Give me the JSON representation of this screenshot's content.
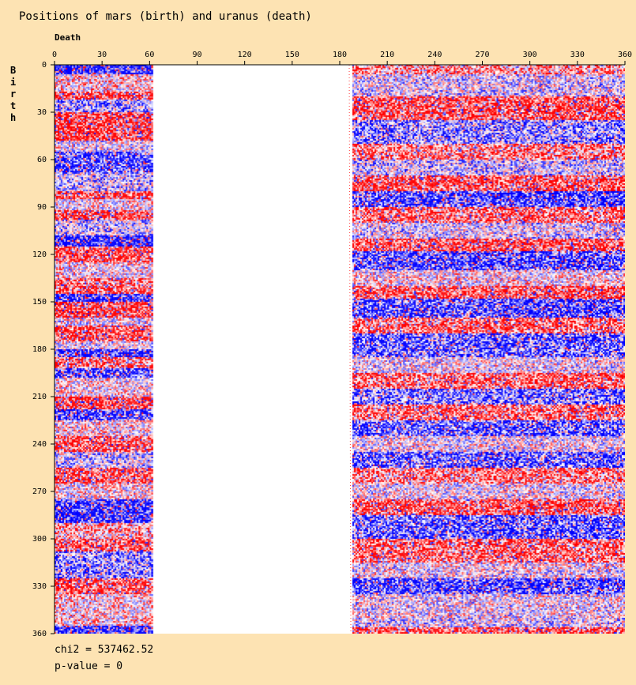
{
  "chart_data": {
    "type": "heatmap",
    "title": "Positions of mars (birth) and uranus (death)",
    "xlabel": "Death",
    "ylabel": "Birth",
    "xlim": [
      0,
      360
    ],
    "ylim": [
      0,
      360
    ],
    "xticks": [
      0,
      30,
      60,
      90,
      120,
      150,
      180,
      210,
      240,
      270,
      300,
      330,
      360
    ],
    "yticks": [
      0,
      30,
      60,
      90,
      120,
      150,
      180,
      210,
      240,
      270,
      300,
      330,
      360
    ],
    "colorscale": {
      "low": "#0000ff",
      "mid": "#ffffff",
      "high": "#ff0000"
    },
    "empty_x_range": [
      62,
      188
    ],
    "left_region": [
      0,
      62
    ],
    "right_region": [
      188,
      360
    ],
    "left_row_bands": [
      [
        0,
        6,
        -1
      ],
      [
        6,
        17,
        0.2
      ],
      [
        17,
        22,
        0.8
      ],
      [
        22,
        30,
        -0.4
      ],
      [
        30,
        48,
        0.9
      ],
      [
        48,
        55,
        0
      ],
      [
        55,
        68,
        -0.8
      ],
      [
        68,
        80,
        -0.2
      ],
      [
        80,
        85,
        0.8
      ],
      [
        85,
        92,
        0.1
      ],
      [
        92,
        98,
        0.8
      ],
      [
        98,
        108,
        -0.2
      ],
      [
        108,
        115,
        -1
      ],
      [
        115,
        125,
        0.8
      ],
      [
        125,
        135,
        0.1
      ],
      [
        135,
        145,
        0.7
      ],
      [
        145,
        150,
        -0.9
      ],
      [
        150,
        160,
        0.9
      ],
      [
        160,
        165,
        0
      ],
      [
        165,
        175,
        0.8
      ],
      [
        175,
        180,
        0
      ],
      [
        180,
        185,
        -0.9
      ],
      [
        185,
        192,
        0.6
      ],
      [
        192,
        198,
        -0.8
      ],
      [
        198,
        210,
        0.1
      ],
      [
        210,
        218,
        0.9
      ],
      [
        218,
        225,
        -0.8
      ],
      [
        225,
        235,
        0.1
      ],
      [
        235,
        245,
        0.8
      ],
      [
        245,
        255,
        -0.2
      ],
      [
        255,
        265,
        0.8
      ],
      [
        265,
        275,
        0.1
      ],
      [
        275,
        290,
        -0.9
      ],
      [
        290,
        300,
        0.4
      ],
      [
        300,
        308,
        0.8
      ],
      [
        308,
        325,
        -0.5
      ],
      [
        325,
        335,
        0.8
      ],
      [
        335,
        355,
        0.2
      ],
      [
        355,
        360,
        -1
      ]
    ],
    "right_row_bands": [
      [
        0,
        6,
        0.5
      ],
      [
        6,
        20,
        -0.1
      ],
      [
        20,
        35,
        0.8
      ],
      [
        35,
        50,
        -0.5
      ],
      [
        50,
        60,
        0.6
      ],
      [
        60,
        70,
        -0.2
      ],
      [
        70,
        80,
        0.8
      ],
      [
        80,
        90,
        -0.8
      ],
      [
        90,
        100,
        0.7
      ],
      [
        100,
        110,
        -0.1
      ],
      [
        110,
        118,
        0.8
      ],
      [
        118,
        130,
        -0.8
      ],
      [
        130,
        140,
        0.1
      ],
      [
        140,
        148,
        0.8
      ],
      [
        148,
        160,
        -0.8
      ],
      [
        160,
        170,
        0.7
      ],
      [
        170,
        185,
        -0.7
      ],
      [
        185,
        195,
        0
      ],
      [
        195,
        205,
        0.7
      ],
      [
        205,
        215,
        -0.6
      ],
      [
        215,
        225,
        0.7
      ],
      [
        225,
        235,
        -0.7
      ],
      [
        235,
        245,
        0
      ],
      [
        245,
        255,
        -0.7
      ],
      [
        255,
        265,
        0.6
      ],
      [
        265,
        275,
        0
      ],
      [
        275,
        285,
        0.8
      ],
      [
        285,
        300,
        -0.7
      ],
      [
        300,
        315,
        0.7
      ],
      [
        315,
        325,
        0
      ],
      [
        325,
        335,
        -0.8
      ],
      [
        335,
        350,
        0
      ],
      [
        350,
        356,
        -0.1
      ],
      [
        356,
        360,
        0.8
      ]
    ],
    "stats": {
      "chi2": "chi2 = 537462.52",
      "p_value": "p-value = 0"
    }
  }
}
